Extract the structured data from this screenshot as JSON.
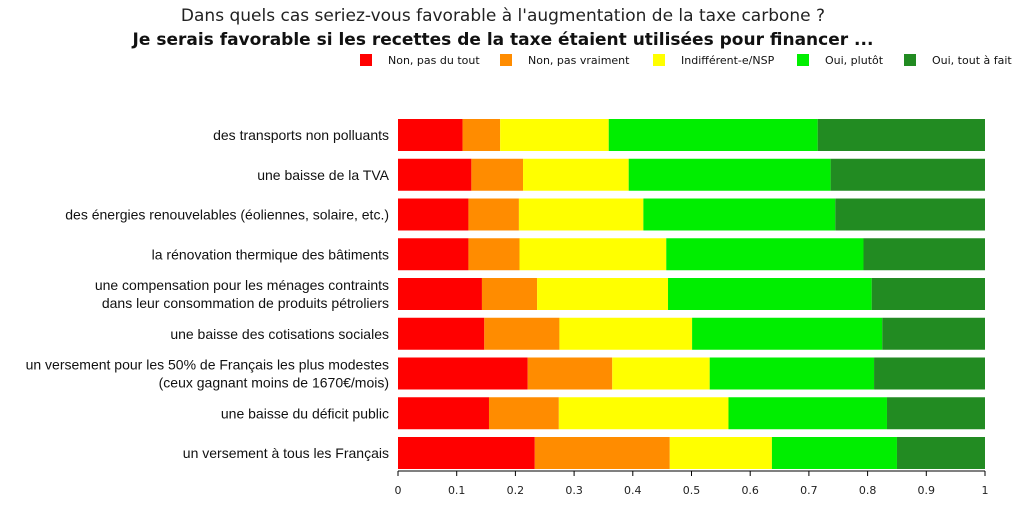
{
  "chart_data": {
    "type": "bar",
    "orientation": "horizontal",
    "stacked": true,
    "title": "Dans quels cas seriez-vous favorable à l'augmentation de la taxe carbone ?",
    "subtitle": "Je serais favorable si les recettes de la taxe étaient utilisées pour financer ...",
    "xlabel": "",
    "ylabel": "",
    "xlim": [
      0,
      1
    ],
    "x_ticks": [
      "0",
      "0.1",
      "0.2",
      "0.3",
      "0.4",
      "0.5",
      "0.6",
      "0.7",
      "0.8",
      "0.9",
      "1"
    ],
    "grid": false,
    "legend_position": "top-right",
    "categories": [
      [
        "des transports non polluants"
      ],
      [
        "une baisse de la TVA"
      ],
      [
        "des énergies renouvelables (éoliennes, solaire, etc.)"
      ],
      [
        "la rénovation thermique des bâtiments"
      ],
      [
        "une compensation pour les ménages contraints",
        "dans leur consommation de produits pétroliers"
      ],
      [
        "une baisse des cotisations sociales"
      ],
      [
        "un versement pour les 50% de Français les plus modestes",
        "(ceux gagnant moins de 1670€/mois)"
      ],
      [
        "une baisse du déficit public"
      ],
      [
        "un versement à tous les Français"
      ]
    ],
    "series": [
      {
        "name": "Non, pas du tout",
        "color": "#ff0000",
        "values": [
          0.11,
          0.125,
          0.12,
          0.12,
          0.143,
          0.147,
          0.221,
          0.155,
          0.233
        ]
      },
      {
        "name": "Non, pas vraiment",
        "color": "#ff8c00",
        "values": [
          0.064,
          0.088,
          0.086,
          0.087,
          0.094,
          0.128,
          0.144,
          0.119,
          0.23
        ]
      },
      {
        "name": "Indifférent-e/NSP",
        "color": "#ffff00",
        "values": [
          0.185,
          0.18,
          0.212,
          0.25,
          0.223,
          0.226,
          0.166,
          0.289,
          0.174
        ]
      },
      {
        "name": "Oui, plutôt",
        "color": "#00ee00",
        "values": [
          0.356,
          0.344,
          0.327,
          0.336,
          0.347,
          0.324,
          0.28,
          0.27,
          0.213
        ]
      },
      {
        "name": "Oui, tout à fait",
        "color": "#228b22",
        "values": [
          0.285,
          0.263,
          0.255,
          0.207,
          0.193,
          0.175,
          0.189,
          0.167,
          0.15
        ]
      }
    ]
  }
}
